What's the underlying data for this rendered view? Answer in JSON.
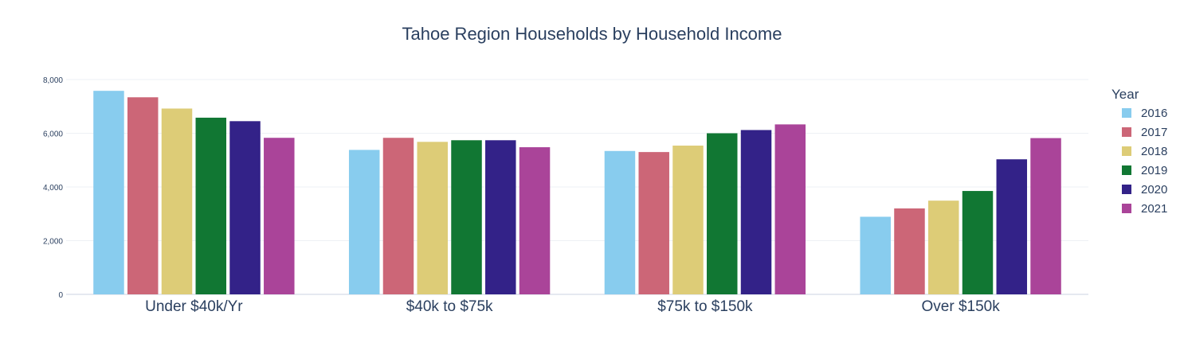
{
  "chart_data": {
    "type": "bar",
    "title": "Tahoe Region Households by Household Income",
    "xlabel": "",
    "ylabel": "",
    "ylim": [
      0,
      8000
    ],
    "yticks": [
      0,
      2000,
      4000,
      6000,
      8000
    ],
    "ytick_labels": [
      "0",
      "2,000",
      "4,000",
      "6,000",
      "8,000"
    ],
    "grid": true,
    "legend_title": "Year",
    "legend_position": "right",
    "categories": [
      "Under $40k/Yr",
      "$40k to $75k",
      "$75k to $150k",
      "Over $150k"
    ],
    "series": [
      {
        "name": "2016",
        "color": "#88CCEE",
        "values": [
          7580,
          5380,
          5340,
          2890
        ]
      },
      {
        "name": "2017",
        "color": "#CC6677",
        "values": [
          7340,
          5830,
          5300,
          3200
        ]
      },
      {
        "name": "2018",
        "color": "#DDCC77",
        "values": [
          6920,
          5680,
          5540,
          3490
        ]
      },
      {
        "name": "2019",
        "color": "#117733",
        "values": [
          6580,
          5740,
          6000,
          3850
        ]
      },
      {
        "name": "2020",
        "color": "#332288",
        "values": [
          6450,
          5740,
          6120,
          5030
        ]
      },
      {
        "name": "2021",
        "color": "#AA4499",
        "values": [
          5830,
          5480,
          6330,
          5820
        ]
      }
    ]
  }
}
